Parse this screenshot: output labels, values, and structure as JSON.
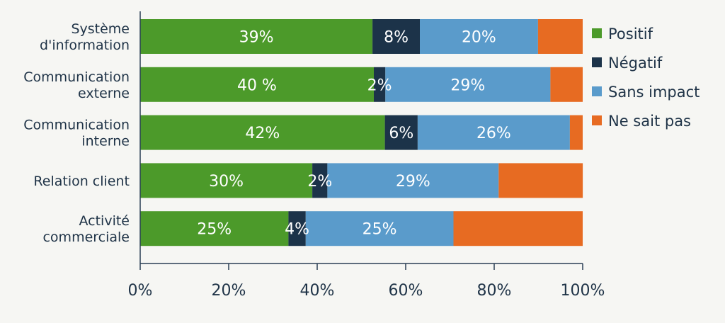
{
  "chart_data": {
    "type": "bar",
    "orientation": "horizontal",
    "stacked": true,
    "categories": [
      [
        "Système",
        "d'information"
      ],
      [
        "Communication",
        "externe"
      ],
      [
        "Communication",
        "interne"
      ],
      [
        "Relation client"
      ],
      [
        "Activité",
        "commerciale"
      ]
    ],
    "series": [
      {
        "name": "Positif",
        "color": "#4c9a2a",
        "values": [
          52.5,
          52.8,
          55.3,
          38.9,
          33.5
        ],
        "labels": [
          "39%",
          "40 %",
          "42%",
          "30%",
          "25%"
        ]
      },
      {
        "name": "Négatif",
        "color": "#1c3349",
        "values": [
          10.7,
          2.6,
          7.4,
          3.4,
          3.9
        ],
        "labels": [
          "8%",
          "2%",
          "6%",
          "2%",
          "4%"
        ]
      },
      {
        "name": "Sans impact",
        "color": "#5a9bcb",
        "values": [
          26.7,
          37.3,
          34.4,
          38.7,
          33.4
        ],
        "labels": [
          "20%",
          "29%",
          "26%",
          "29%",
          "25%"
        ]
      },
      {
        "name": "Ne sait pas",
        "color": "#e76b22",
        "values": [
          10.1,
          7.3,
          2.9,
          19.0,
          29.2
        ],
        "labels": [
          "",
          "",
          "",
          "",
          ""
        ]
      }
    ],
    "xlim": [
      0,
      100
    ],
    "xticks": [
      "0%",
      "20%",
      "40%",
      "60%",
      "80%",
      "100%"
    ],
    "grid": false,
    "legend_position": "right"
  }
}
